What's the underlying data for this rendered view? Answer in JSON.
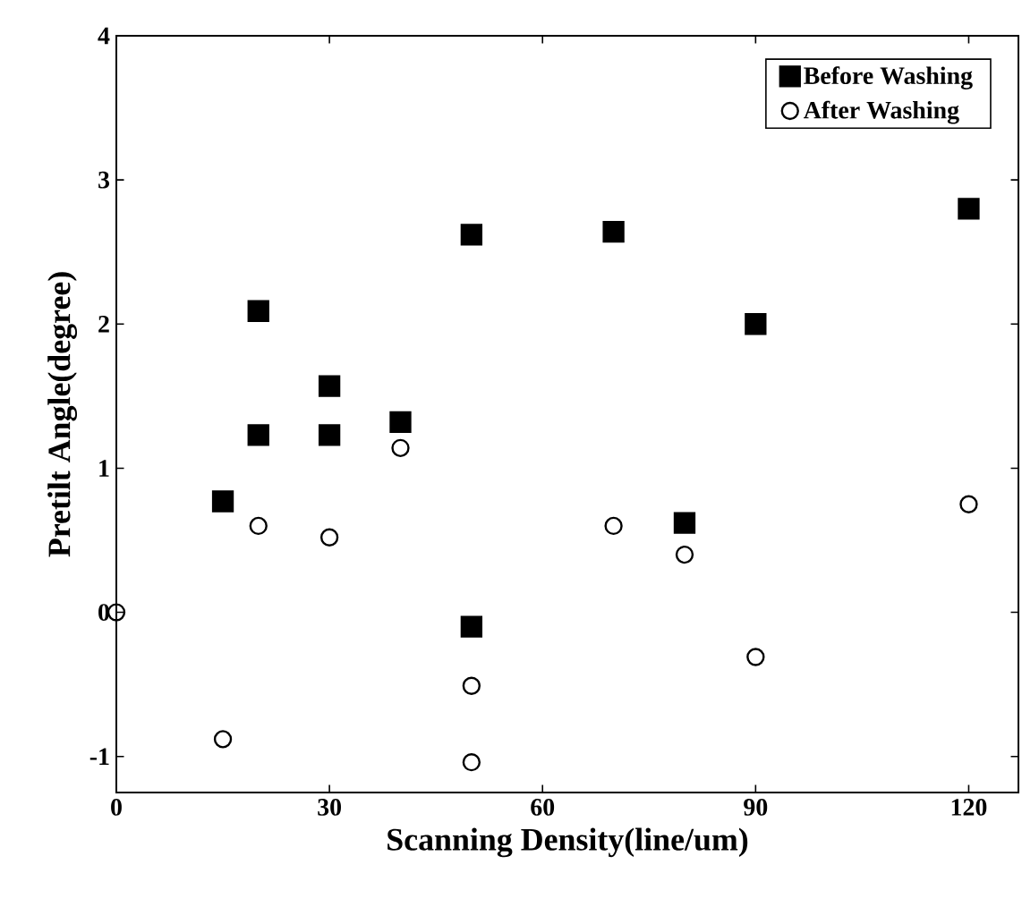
{
  "chart_data": {
    "type": "scatter",
    "xlabel": "Scanning Density(line/um)",
    "ylabel": "Pretilt Angle(degree)",
    "xlim": [
      0,
      127
    ],
    "ylim": [
      -1.25,
      4
    ],
    "xticks": [
      0,
      30,
      60,
      90,
      120
    ],
    "yticks": [
      -1,
      0,
      1,
      2,
      3,
      4
    ],
    "grid": false,
    "legend": "top right",
    "series": [
      {
        "name": "Before Washing",
        "color": "#000000",
        "marker": "square",
        "x": [
          15,
          20,
          20,
          30,
          30,
          40,
          50,
          50,
          70,
          80,
          90,
          120
        ],
        "values": [
          0.77,
          2.09,
          1.23,
          1.57,
          1.23,
          1.32,
          2.62,
          -0.1,
          2.64,
          0.62,
          2.0,
          2.8
        ]
      },
      {
        "name": "After Washing",
        "color": "#000000",
        "marker": "circle",
        "x": [
          0,
          15,
          20,
          30,
          40,
          50,
          50,
          70,
          80,
          90,
          120
        ],
        "values": [
          0,
          -0.88,
          0.6,
          0.52,
          1.14,
          -0.51,
          -1.04,
          0.6,
          0.4,
          -0.31,
          0.75
        ]
      }
    ]
  }
}
